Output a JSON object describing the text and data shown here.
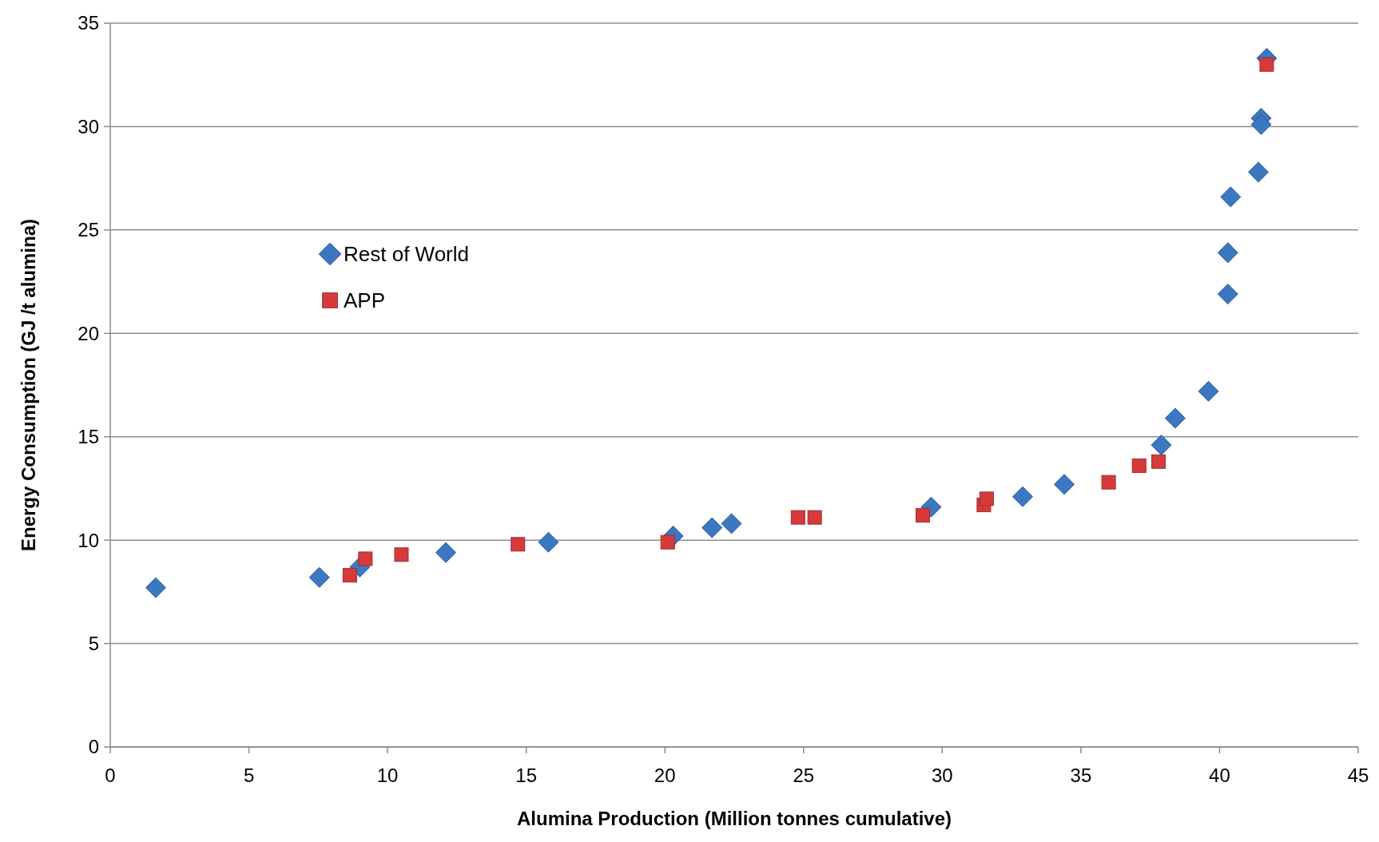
{
  "chart_data": {
    "type": "scatter",
    "xlabel": "Alumina Production (Million tonnes cumulative)",
    "ylabel": "Energy Consumption (GJ /t alumina)",
    "xlim": [
      0,
      45
    ],
    "xticks": [
      0,
      5,
      10,
      15,
      20,
      25,
      30,
      35,
      40,
      45
    ],
    "ylim": [
      0,
      35
    ],
    "yticks": [
      0,
      5,
      10,
      15,
      20,
      25,
      30,
      35
    ],
    "grid": "y",
    "legend": "left",
    "series": [
      {
        "name": "Rest of World",
        "color": "#3a78c2",
        "marker": "diamond",
        "x": [
          1.64,
          7.54,
          9.0,
          12.1,
          15.8,
          20.3,
          21.7,
          22.4,
          29.6,
          32.9,
          34.4,
          37.9,
          38.4,
          39.6,
          40.3,
          40.3,
          40.4,
          41.4,
          41.5,
          41.5,
          41.7
        ],
        "values": [
          7.7,
          8.2,
          8.7,
          9.4,
          9.9,
          10.2,
          10.6,
          10.8,
          11.6,
          12.1,
          12.7,
          14.6,
          15.9,
          17.2,
          21.9,
          23.9,
          26.6,
          27.8,
          30.4,
          30.1,
          33.3
        ]
      },
      {
        "name": "APP",
        "color": "#d63a3a",
        "marker": "square",
        "x": [
          8.64,
          9.2,
          10.5,
          14.7,
          20.1,
          24.8,
          25.4,
          29.3,
          31.5,
          31.6,
          36.0,
          37.1,
          37.8,
          41.7
        ],
        "values": [
          8.3,
          9.1,
          9.3,
          9.8,
          9.9,
          11.1,
          11.1,
          11.2,
          11.7,
          12.0,
          12.8,
          13.6,
          13.8,
          33.0
        ]
      }
    ]
  }
}
